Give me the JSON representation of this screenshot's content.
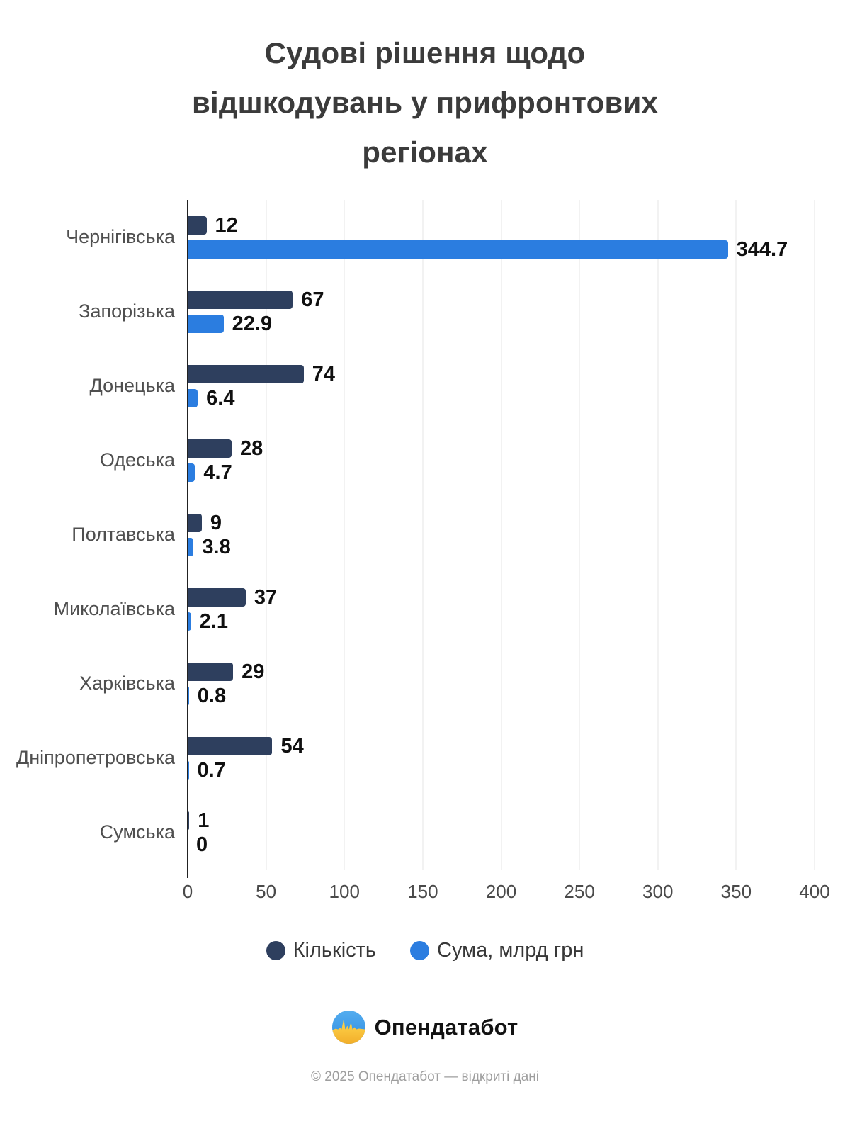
{
  "title_lines": [
    "Судові рішення щодо",
    "відшкодувань у прифронтових",
    "регіонах"
  ],
  "chart_data": {
    "type": "bar",
    "orientation": "horizontal",
    "title": "Судові рішення щодо відшкодувань у прифронтових регіонах",
    "categories": [
      "Чернігівська",
      "Запорізька",
      "Донецька",
      "Одеська",
      "Полтавська",
      "Миколаївська",
      "Харківська",
      "Дніпропетровська",
      "Сумська"
    ],
    "series": [
      {
        "name": "Кількість",
        "color": "#2e3f5e",
        "values": [
          12,
          67,
          74,
          28,
          9,
          37,
          29,
          54,
          1
        ]
      },
      {
        "name": "Сума, млрд грн",
        "color": "#2b7de0",
        "values": [
          344.7,
          22.9,
          6.4,
          4.7,
          3.8,
          2.1,
          0.8,
          0.7,
          0
        ]
      }
    ],
    "xlim": [
      0,
      400
    ],
    "xticks": [
      0,
      50,
      100,
      150,
      200,
      250,
      300,
      350,
      400
    ],
    "grid": true,
    "legend_position": "bottom"
  },
  "colors": {
    "count_series": "#2e3f5e",
    "sum_series": "#2b7de0",
    "gridline": "#e4e4e4",
    "axis": "#222222"
  },
  "footer": {
    "brand": "Опендатабот",
    "copyright": "© 2025 Опендатабот — відкриті дані"
  }
}
